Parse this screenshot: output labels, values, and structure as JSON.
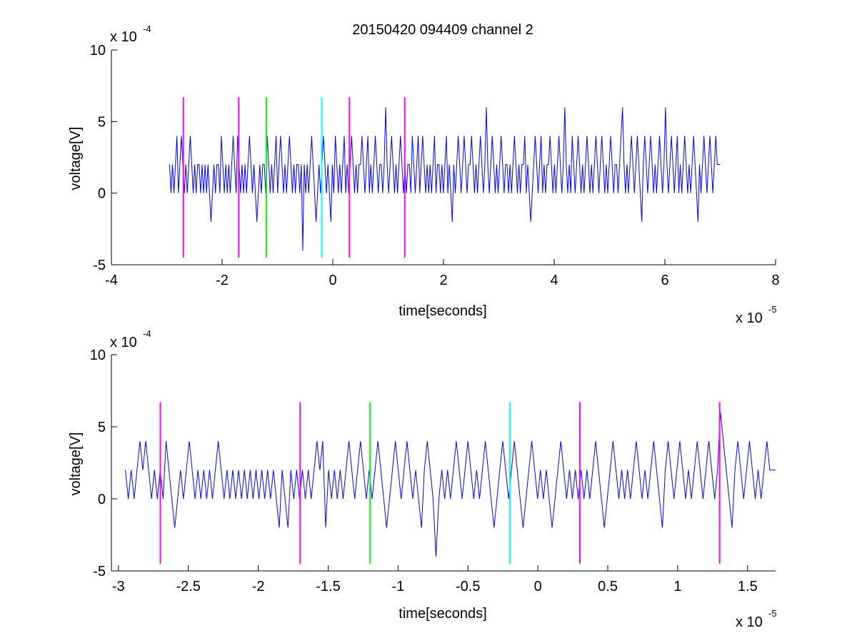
{
  "figure_title": "20150420 094409 channel 2",
  "colors": {
    "signal": "#0000ff",
    "marker_magenta": "#ff00ff",
    "marker_green": "#00ff00",
    "marker_cyan": "#00ffff",
    "axes": "#000000",
    "background": "#ffffff"
  },
  "chart_data": [
    {
      "type": "line",
      "title": "20150420 094409 channel 2",
      "xlabel": "time[seconds]",
      "ylabel": "voltage[V]",
      "x_exponent_label": "x 10",
      "x_exponent": "-5",
      "y_exponent_label": "x 10",
      "y_exponent": "-4",
      "xlim": [
        -4,
        8
      ],
      "ylim": [
        -5,
        10
      ],
      "x_ticks": [
        -4,
        -2,
        0,
        2,
        4,
        6,
        8
      ],
      "x_tick_labels": [
        "-4",
        "-2",
        "0",
        "2",
        "4",
        "6",
        "8"
      ],
      "y_ticks": [
        -5,
        0,
        5,
        10
      ],
      "y_tick_labels": [
        "-5",
        "0",
        "5",
        "10"
      ],
      "grid": false,
      "series": [
        {
          "style": "stepped noise trace",
          "x_start": -2.95,
          "x_end": 7.0,
          "baseline": 2,
          "levels": [
            -4,
            -2,
            0,
            2,
            4,
            6
          ],
          "samples": [
            2,
            0,
            2,
            0,
            2,
            4,
            0,
            2,
            4,
            2,
            0,
            2,
            0,
            2,
            4,
            2,
            0,
            2,
            0,
            2,
            2,
            0,
            2,
            0,
            2,
            0,
            2,
            0,
            -2,
            0,
            2,
            0,
            2,
            2,
            0,
            4,
            2,
            0,
            2,
            0,
            2,
            0,
            2,
            4,
            2,
            0,
            4,
            2,
            0,
            2,
            0,
            2,
            0,
            2,
            4,
            2,
            0,
            2,
            0,
            -2,
            0,
            2,
            0,
            2,
            2,
            0,
            4,
            2,
            0,
            2,
            0,
            2,
            4,
            0,
            2,
            4,
            2,
            0,
            2,
            0,
            2,
            4,
            2,
            0,
            2,
            0,
            2,
            2,
            0,
            2,
            -4,
            2,
            0,
            2,
            0,
            2,
            4,
            2,
            0,
            -2,
            0,
            2,
            0,
            2,
            4,
            2,
            0,
            2,
            0,
            -2,
            2,
            0,
            4,
            2,
            0,
            2,
            0,
            2,
            4,
            0,
            2,
            0,
            2,
            4,
            2,
            0,
            2,
            0,
            2,
            2,
            4,
            2,
            0,
            2,
            4,
            0,
            2,
            0,
            2,
            4,
            2,
            0,
            2,
            2,
            0,
            2,
            6,
            2,
            0,
            2,
            4,
            2,
            0,
            2,
            0,
            2,
            4,
            2,
            0,
            2,
            0,
            2,
            2,
            0,
            4,
            2,
            0,
            2,
            4,
            0,
            2,
            4,
            2,
            0,
            2,
            0,
            2,
            0,
            2,
            4,
            0,
            2,
            2,
            0,
            2,
            0,
            2,
            4,
            0,
            2,
            0,
            -2,
            2,
            0,
            2,
            4,
            2,
            0,
            2,
            4,
            2,
            0,
            2,
            2,
            4,
            2,
            0,
            2,
            0,
            2,
            4,
            2,
            0,
            2,
            6,
            2,
            0,
            2,
            4,
            2,
            0,
            2,
            0,
            2,
            4,
            2,
            0,
            2,
            2,
            0,
            2,
            0,
            2,
            4,
            2,
            0,
            2,
            0,
            2,
            2,
            4,
            0,
            2,
            0,
            -2,
            0,
            2,
            4,
            2,
            0,
            2,
            4,
            0,
            2,
            0,
            2,
            2,
            4,
            2,
            0,
            2,
            0,
            2,
            4,
            2,
            0,
            2,
            6,
            2,
            0,
            2,
            0,
            4,
            2,
            0,
            2,
            4,
            2,
            0,
            2,
            0,
            2,
            4,
            2,
            0,
            2,
            0,
            2,
            4,
            2,
            0,
            2,
            4,
            2,
            0,
            2,
            0,
            2,
            4,
            2,
            0,
            2,
            2,
            0,
            2,
            4,
            6,
            2,
            0,
            2,
            0,
            2,
            4,
            2,
            0,
            2,
            4,
            2,
            0,
            -2,
            2,
            4,
            2,
            0,
            2,
            4,
            2,
            0,
            2,
            0,
            2,
            4,
            2,
            0,
            2,
            6,
            2,
            0,
            2,
            4,
            2,
            0,
            2,
            4,
            0,
            2,
            0,
            2,
            4,
            2,
            0,
            2,
            0,
            2,
            4,
            2,
            0,
            -2,
            2,
            0,
            2,
            4,
            2,
            0,
            2,
            4,
            2,
            0,
            2,
            4,
            2,
            2,
            2
          ],
          "color": "#0000ff"
        }
      ],
      "markers": [
        {
          "x": -2.7,
          "y_range": [
            -4.5,
            6.7
          ],
          "color": "#ff00ff"
        },
        {
          "x": -1.7,
          "y_range": [
            -4.5,
            6.7
          ],
          "color": "#ff00ff"
        },
        {
          "x": -1.2,
          "y_range": [
            -4.5,
            6.7
          ],
          "color": "#00ff00"
        },
        {
          "x": -0.2,
          "y_range": [
            -4.5,
            6.7
          ],
          "color": "#00ffff"
        },
        {
          "x": 0.3,
          "y_range": [
            -4.5,
            6.7
          ],
          "color": "#ff00ff"
        },
        {
          "x": 1.3,
          "y_range": [
            -4.5,
            6.7
          ],
          "color": "#ff00ff"
        }
      ]
    },
    {
      "type": "line",
      "title": "",
      "xlabel": "time[seconds]",
      "ylabel": "voltage[V]",
      "x_exponent_label": "x 10",
      "x_exponent": "-5",
      "y_exponent_label": "x 10",
      "y_exponent": "-4",
      "xlim": [
        -3.05,
        1.7
      ],
      "ylim": [
        -5,
        10
      ],
      "x_ticks": [
        -3,
        -2.5,
        -2,
        -1.5,
        -1,
        -0.5,
        0,
        0.5,
        1,
        1.5
      ],
      "x_tick_labels": [
        "-3",
        "-2.5",
        "-2",
        "-1.5",
        "-1",
        "-0.5",
        "0",
        "0.5",
        "1",
        "1.5"
      ],
      "y_ticks": [
        -5,
        0,
        5,
        10
      ],
      "y_tick_labels": [
        "-5",
        "0",
        "5",
        "10"
      ],
      "grid": false,
      "series": [
        {
          "style": "zoomed noise trace",
          "x_start": -2.95,
          "x_end": 1.7,
          "baseline": 2,
          "levels": [
            -4,
            -2,
            0,
            2,
            4,
            6
          ],
          "samples": [
            2,
            0,
            2,
            0,
            2,
            4,
            2,
            4,
            2,
            0,
            2,
            0,
            2,
            0,
            4,
            2,
            0,
            -2,
            0,
            2,
            0,
            2,
            4,
            2,
            0,
            2,
            0,
            2,
            0,
            2,
            0,
            2,
            4,
            2,
            0,
            2,
            0,
            2,
            0,
            2,
            0,
            2,
            0,
            2,
            0,
            2,
            0,
            2,
            0,
            2,
            0,
            2,
            0,
            -2,
            2,
            0,
            -2,
            2,
            0,
            2,
            0,
            2,
            0,
            2,
            0,
            2,
            4,
            2,
            4,
            -2,
            2,
            0,
            2,
            0,
            2,
            0,
            2,
            4,
            2,
            0,
            2,
            4,
            2,
            0,
            2,
            0,
            2,
            4,
            2,
            0,
            -2,
            0,
            2,
            4,
            2,
            0,
            2,
            4,
            2,
            0,
            2,
            0,
            -2,
            2,
            4,
            2,
            0,
            -4,
            0,
            2,
            0,
            2,
            0,
            2,
            4,
            2,
            0,
            2,
            4,
            2,
            0,
            2,
            0,
            2,
            4,
            2,
            0,
            -2,
            0,
            2,
            4,
            2,
            0,
            2,
            4,
            2,
            0,
            -2,
            0,
            2,
            4,
            2,
            0,
            2,
            0,
            2,
            0,
            -2,
            0,
            2,
            4,
            2,
            0,
            2,
            0,
            2,
            0,
            2,
            0,
            2,
            0,
            2,
            4,
            2,
            0,
            -2,
            0,
            2,
            4,
            2,
            0,
            2,
            0,
            2,
            0,
            2,
            4,
            2,
            0,
            2,
            0,
            2,
            4,
            2,
            0,
            -2,
            2,
            4,
            2,
            0,
            2,
            4,
            2,
            0,
            2,
            0,
            2,
            4,
            2,
            0,
            2,
            4,
            2,
            0,
            2,
            6,
            4,
            2,
            0,
            -2,
            2,
            4,
            2,
            0,
            2,
            4,
            2,
            0,
            2,
            0,
            2,
            4,
            2,
            2,
            2
          ],
          "color": "#0000ff"
        }
      ],
      "markers": [
        {
          "x": -2.7,
          "y_range": [
            -4.5,
            6.7
          ],
          "color": "#ff00ff"
        },
        {
          "x": -1.7,
          "y_range": [
            -4.5,
            6.7
          ],
          "color": "#ff00ff"
        },
        {
          "x": -1.2,
          "y_range": [
            -4.5,
            6.7
          ],
          "color": "#00ff00"
        },
        {
          "x": -0.2,
          "y_range": [
            -4.5,
            6.7
          ],
          "color": "#00ffff"
        },
        {
          "x": 0.3,
          "y_range": [
            -4.5,
            6.7
          ],
          "color": "#ff00ff"
        },
        {
          "x": 1.3,
          "y_range": [
            -4.5,
            6.7
          ],
          "color": "#ff00ff"
        }
      ]
    }
  ]
}
